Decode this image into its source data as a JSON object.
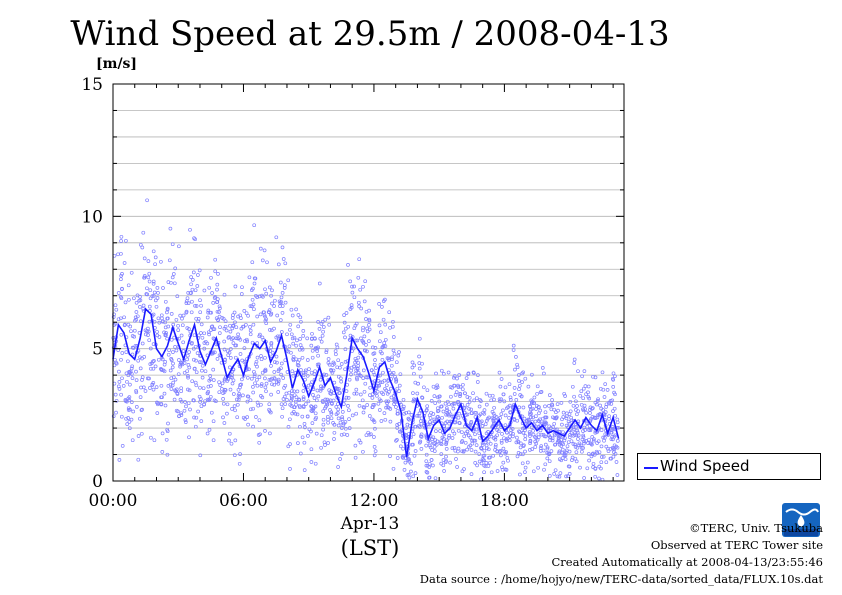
{
  "chart_data": {
    "type": "scatter",
    "title": "Wind Speed at 29.5m / 2008-04-13",
    "ylabel": "[m/s]",
    "ylim": [
      0,
      15
    ],
    "yticks": [
      "0",
      "5",
      "10",
      "15"
    ],
    "xlim_hours": [
      0,
      23.5
    ],
    "xticks": [
      "00:00",
      "06:00",
      "12:00",
      "18:00"
    ],
    "xlabel_date": "Apr-13",
    "xlabel_tz": "(LST)",
    "grid": true,
    "legend_position": "right",
    "legend": [
      "Wind Speed"
    ],
    "colors": {
      "line": "#1a1aff",
      "points": "#8080ff"
    },
    "series": [
      {
        "name": "Wind Speed",
        "x_hours": [
          0.0,
          0.25,
          0.5,
          0.75,
          1.0,
          1.25,
          1.5,
          1.75,
          2.0,
          2.25,
          2.5,
          2.75,
          3.0,
          3.25,
          3.5,
          3.75,
          4.0,
          4.25,
          4.5,
          4.75,
          5.0,
          5.25,
          5.5,
          5.75,
          6.0,
          6.25,
          6.5,
          6.75,
          7.0,
          7.25,
          7.5,
          7.75,
          8.0,
          8.25,
          8.5,
          8.75,
          9.0,
          9.25,
          9.5,
          9.75,
          10.0,
          10.25,
          10.5,
          10.75,
          11.0,
          11.25,
          11.5,
          11.75,
          12.0,
          12.25,
          12.5,
          12.75,
          13.0,
          13.25,
          13.5,
          13.75,
          14.0,
          14.25,
          14.5,
          14.75,
          15.0,
          15.25,
          15.5,
          15.75,
          16.0,
          16.25,
          16.5,
          16.75,
          17.0,
          17.25,
          17.5,
          17.75,
          18.0,
          18.25,
          18.5,
          18.75,
          19.0,
          19.25,
          19.5,
          19.75,
          20.0,
          20.25,
          20.5,
          20.75,
          21.0,
          21.25,
          21.5,
          21.75,
          22.0,
          22.25,
          22.5,
          22.75,
          23.0,
          23.25
        ],
        "values": [
          4.6,
          5.9,
          5.6,
          4.8,
          4.6,
          5.4,
          6.5,
          6.3,
          5.0,
          4.7,
          5.1,
          5.8,
          5.2,
          4.6,
          5.3,
          5.9,
          4.9,
          4.4,
          4.9,
          5.4,
          4.7,
          3.9,
          4.3,
          4.6,
          4.0,
          4.7,
          5.2,
          5.0,
          5.3,
          4.5,
          4.9,
          5.5,
          4.6,
          3.5,
          4.2,
          3.8,
          3.2,
          3.7,
          4.3,
          3.6,
          3.9,
          3.3,
          2.8,
          4.0,
          5.4,
          5.0,
          4.7,
          4.1,
          3.4,
          4.3,
          4.5,
          3.8,
          3.3,
          2.6,
          0.9,
          2.2,
          3.1,
          2.6,
          1.6,
          2.1,
          2.3,
          1.8,
          2.0,
          2.5,
          2.9,
          2.1,
          1.9,
          2.4,
          1.5,
          1.7,
          2.0,
          2.3,
          1.9,
          2.1,
          2.9,
          2.4,
          2.0,
          2.2,
          1.9,
          2.1,
          1.8,
          1.9,
          1.8,
          1.7,
          2.0,
          2.3,
          2.0,
          2.4,
          2.1,
          1.9,
          2.5,
          1.8,
          2.4,
          1.6
        ]
      }
    ]
  },
  "footer": {
    "copyright": "©TERC, Univ. Tsukuba",
    "observed": "Observed at TERC Tower site",
    "created": "Created Automatically at 2008-04-13/23:55:46",
    "source": "Data source : /home/hojyo/new/TERC-data/sorted_data/FLUX.10s.dat"
  },
  "logo": {
    "label": "TERC"
  }
}
